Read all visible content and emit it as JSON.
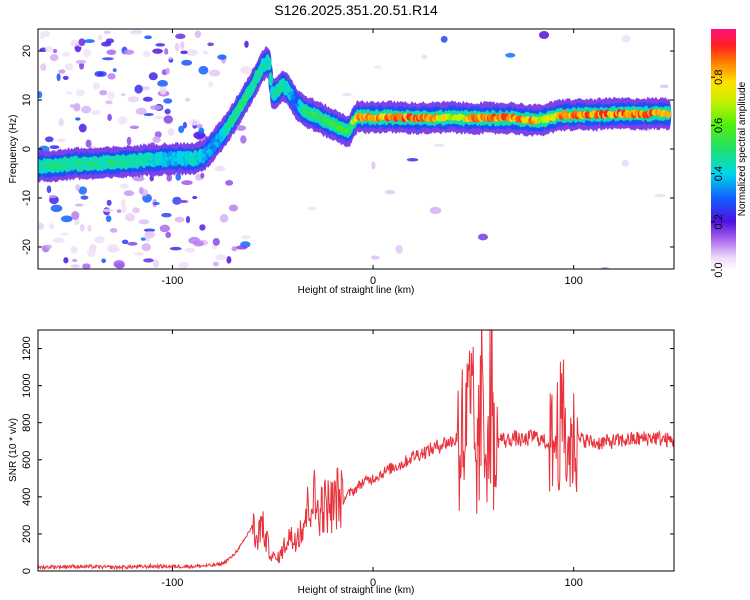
{
  "title": "S126.2025.351.20.51.R14",
  "chart_data": [
    {
      "type": "heatmap",
      "xlabel": "Height of straight line (km)",
      "ylabel": "Frequency (Hz)",
      "xlim": [
        -167,
        150
      ],
      "ylim": [
        -24.5,
        24.5
      ],
      "xticks": [
        -100,
        0,
        100
      ],
      "yticks": [
        -20,
        -10,
        0,
        10,
        20
      ],
      "colorbar": {
        "label": "Normalized spectral amplitude",
        "range": [
          0,
          1
        ],
        "ticks": [
          "0.0",
          "0.2",
          "0.4",
          "0.6",
          "0.8"
        ],
        "tick_values": [
          0,
          0.2,
          0.4,
          0.6,
          0.8
        ]
      },
      "ridge": {
        "x": [
          -167,
          -160,
          -150,
          -140,
          -130,
          -120,
          -110,
          -100,
          -90,
          -85,
          -80,
          -75,
          -70,
          -65,
          -60,
          -55,
          -52,
          -50,
          -47,
          -45,
          -42,
          -40,
          -38,
          -35,
          -30,
          -25,
          -20,
          -15,
          -12,
          -10,
          -8,
          -5,
          0,
          10,
          20,
          30,
          40,
          45,
          50,
          60,
          70,
          80,
          85,
          90,
          95,
          100,
          110,
          120,
          130,
          140,
          148
        ],
        "y": [
          -3.5,
          -3.5,
          -3.0,
          -3.0,
          -2.8,
          -2.5,
          -2.2,
          -2.0,
          -2.0,
          -1.5,
          0.5,
          3.0,
          6.0,
          9.5,
          13.0,
          17.0,
          18.0,
          11.0,
          12.0,
          13.0,
          12.0,
          10.5,
          9.0,
          8.0,
          7.0,
          6.0,
          5.0,
          4.0,
          3.5,
          5.5,
          6.5,
          6.5,
          6.5,
          6.5,
          6.3,
          6.3,
          6.5,
          6.3,
          6.3,
          6.3,
          6.3,
          5.8,
          6.0,
          6.5,
          7.0,
          7.0,
          7.0,
          7.2,
          7.2,
          7.2,
          7.2
        ],
        "amplitude": [
          0.45,
          0.5,
          0.5,
          0.5,
          0.5,
          0.5,
          0.45,
          0.4,
          0.45,
          0.4,
          0.35,
          0.4,
          0.5,
          0.55,
          0.5,
          0.45,
          0.45,
          0.45,
          0.5,
          0.5,
          0.45,
          0.35,
          0.3,
          0.5,
          0.55,
          0.55,
          0.6,
          0.6,
          0.55,
          0.7,
          0.85,
          0.9,
          0.9,
          0.9,
          0.9,
          0.85,
          0.7,
          0.75,
          0.9,
          0.9,
          0.9,
          0.85,
          0.7,
          0.8,
          0.9,
          0.9,
          0.9,
          0.9,
          0.9,
          0.9,
          0.9
        ]
      }
    },
    {
      "type": "line",
      "xlabel": "Height of straight line (km)",
      "ylabel": "SNR (10 * v/v)",
      "xlim": [
        -167,
        150
      ],
      "ylim": [
        0,
        1300
      ],
      "xticks": [
        -100,
        0,
        100
      ],
      "yticks": [
        0,
        200,
        400,
        600,
        800,
        1000,
        1200
      ],
      "series": [
        {
          "color": "#e8323c",
          "x": [
            -167,
            -150,
            -130,
            -110,
            -90,
            -80,
            -75,
            -70,
            -65,
            -60,
            -58,
            -56,
            -54,
            -52,
            -50,
            -48,
            -45,
            -42,
            -40,
            -38,
            -35,
            -32,
            -30,
            -28,
            -25,
            -22,
            -20,
            -18,
            -15,
            -12,
            -10,
            -5,
            0,
            5,
            10,
            15,
            20,
            25,
            30,
            35,
            40,
            42,
            44,
            46,
            48,
            50,
            52,
            54,
            56,
            58,
            59,
            60,
            61,
            62,
            64,
            66,
            70,
            75,
            80,
            85,
            90,
            93,
            95,
            97,
            100,
            105,
            110,
            120,
            130,
            140,
            150
          ],
          "y": [
            20,
            25,
            20,
            25,
            25,
            30,
            40,
            80,
            150,
            250,
            150,
            260,
            200,
            120,
            80,
            60,
            110,
            200,
            160,
            200,
            250,
            350,
            420,
            330,
            350,
            360,
            350,
            400,
            380,
            420,
            430,
            480,
            500,
            530,
            560,
            580,
            620,
            640,
            660,
            690,
            700,
            720,
            740,
            710,
            840,
            760,
            540,
            900,
            640,
            1000,
            1200,
            760,
            350,
            700,
            720,
            700,
            720,
            700,
            730,
            700,
            680,
            780,
            800,
            640,
            700,
            710,
            690,
            700,
            710,
            720,
            700
          ]
        }
      ]
    }
  ]
}
